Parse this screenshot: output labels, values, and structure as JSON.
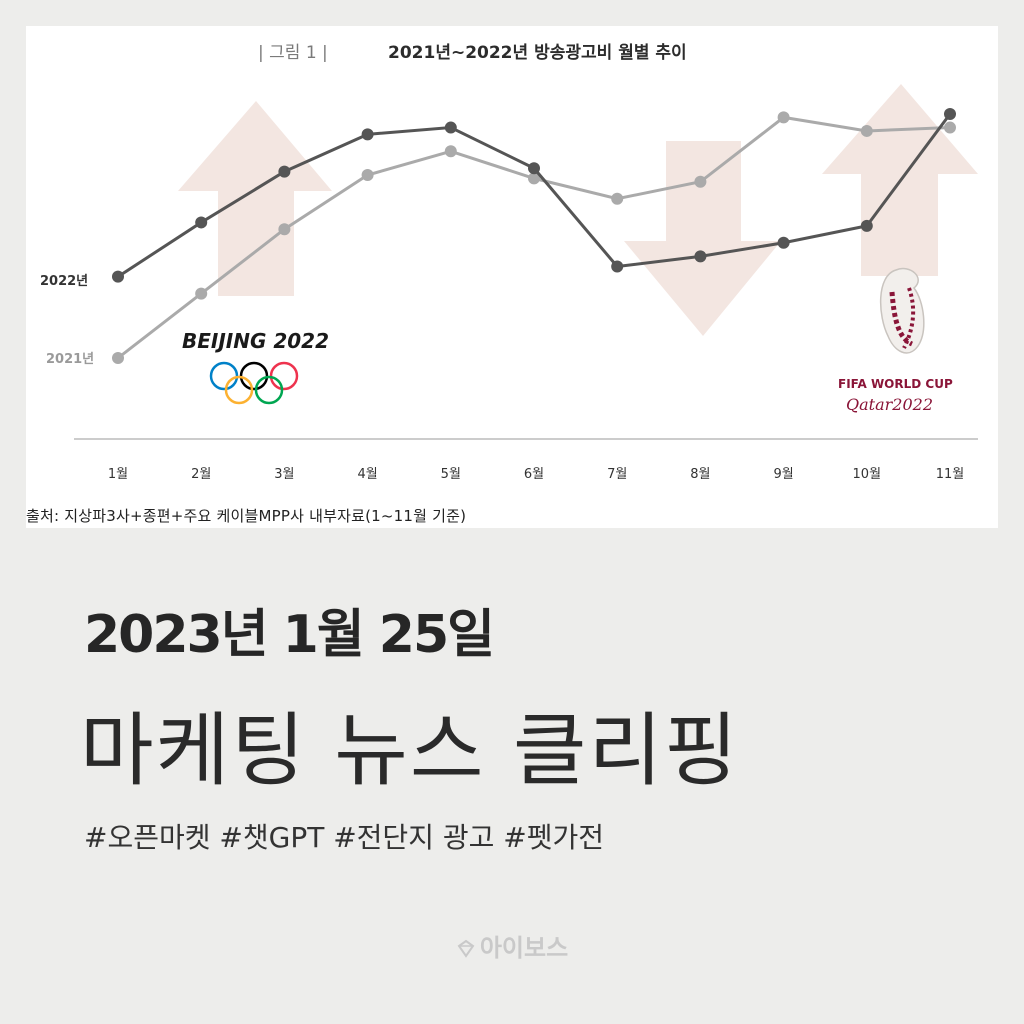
{
  "chart_data": {
    "type": "line",
    "figure_label": "| 그림 1 |",
    "title": "2021년~2022년 방송광고비 월별 추이",
    "categories": [
      "1월",
      "2월",
      "3월",
      "4월",
      "5월",
      "6월",
      "7월",
      "8월",
      "9월",
      "10월",
      "11월"
    ],
    "series": [
      {
        "name": "2022년",
        "color": "#555555",
        "values": [
          52,
          68,
          83,
          94,
          96,
          84,
          55,
          58,
          62,
          67,
          100
        ]
      },
      {
        "name": "2021년",
        "color": "#aaaaaa",
        "values": [
          28,
          47,
          66,
          82,
          89,
          81,
          75,
          80,
          99,
          95,
          96
        ]
      }
    ],
    "ylim": [
      0,
      110
    ],
    "grid": false,
    "annotations": {
      "beijing": "BEIJING 2022",
      "fifa": "FIFA WORLD CUP",
      "qatar": "Qatar2022"
    }
  },
  "source": "출처:  지상파3사+종편+주요  케이블MPP사  내부자료(1~11월  기준)",
  "headline": {
    "date": "2023년 1월 25일",
    "title": "마케팅 뉴스 클리핑",
    "tags": "#오픈마켓 #챗GPT #전단지 광고 #펫가전"
  },
  "brand": {
    "name": "아이보스",
    "icon": "diamond-logo-icon"
  }
}
